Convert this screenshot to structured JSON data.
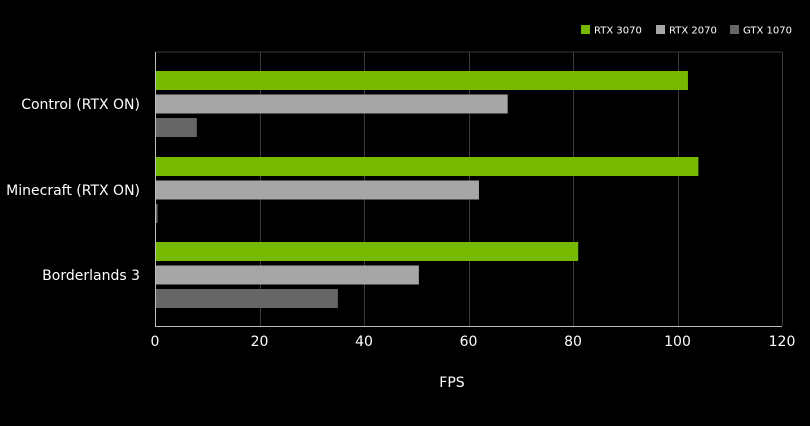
{
  "chart_data": {
    "type": "bar",
    "orientation": "horizontal",
    "title": "",
    "xlabel": "FPS",
    "ylabel": "",
    "xlim": [
      0,
      120
    ],
    "xticks": [
      0,
      20,
      40,
      60,
      80,
      100,
      120
    ],
    "grid": true,
    "legend_position": "top-right",
    "categories": [
      "Control (RTX ON)",
      "Minecraft (RTX ON)",
      "Borderlands 3"
    ],
    "series": [
      {
        "name": "RTX 3070",
        "color": "#76b900",
        "values": [
          102,
          104,
          81
        ]
      },
      {
        "name": "RTX 2070",
        "color": "#a6a6a6",
        "values": [
          67.5,
          62,
          50.5
        ]
      },
      {
        "name": "GTX 1070",
        "color": "#666666",
        "values": [
          8,
          0.5,
          35
        ]
      }
    ]
  },
  "colors": {
    "background": "#000000",
    "text": "#ffffff",
    "grid": "#3a3a3a",
    "axis": "#bfbfbf"
  }
}
